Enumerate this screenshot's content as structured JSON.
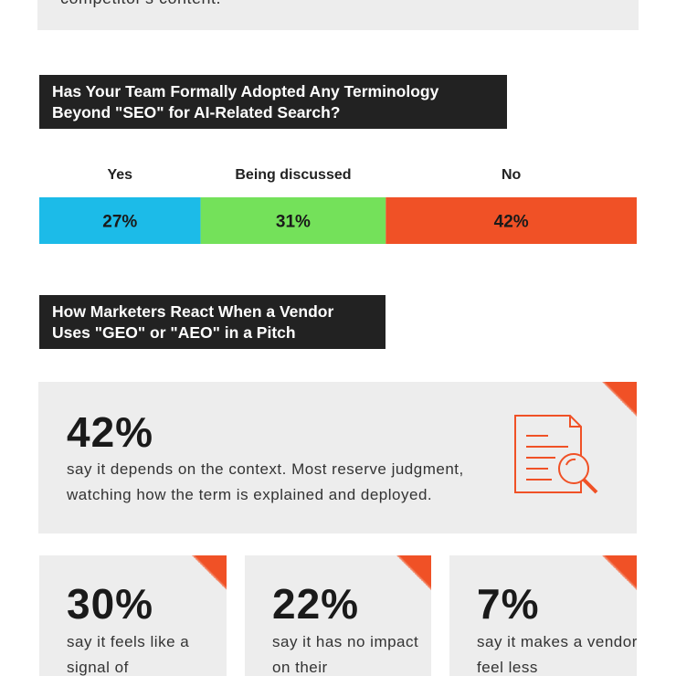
{
  "intro": {
    "text": "competitor's content."
  },
  "section1": {
    "title": "Has Your Team Formally Adopted Any Terminology Beyond \"SEO\" for AI-Related Search?"
  },
  "chart_data": {
    "type": "stacked_bar_100",
    "categories": [
      "Yes",
      "Being discussed",
      "No"
    ],
    "values": [
      27,
      31,
      42
    ],
    "value_labels": [
      "27%",
      "31%",
      "42%"
    ],
    "colors": [
      "#1cbbe8",
      "#74e15a",
      "#f05126"
    ],
    "xlim": [
      0,
      100
    ]
  },
  "section2": {
    "title": "How Marketers React When a Vendor Uses \"GEO\" or \"AEO\" in a Pitch"
  },
  "cards": [
    {
      "stat": "42%",
      "text": "say it depends on the context. Most reserve judgment, watching how the term is explained and deployed."
    },
    {
      "stat": "30%",
      "text": "say it feels like a signal of"
    },
    {
      "stat": "22%",
      "text": "say it has no impact on their"
    },
    {
      "stat": "7%",
      "text": "say it makes a vendor feel less"
    }
  ]
}
